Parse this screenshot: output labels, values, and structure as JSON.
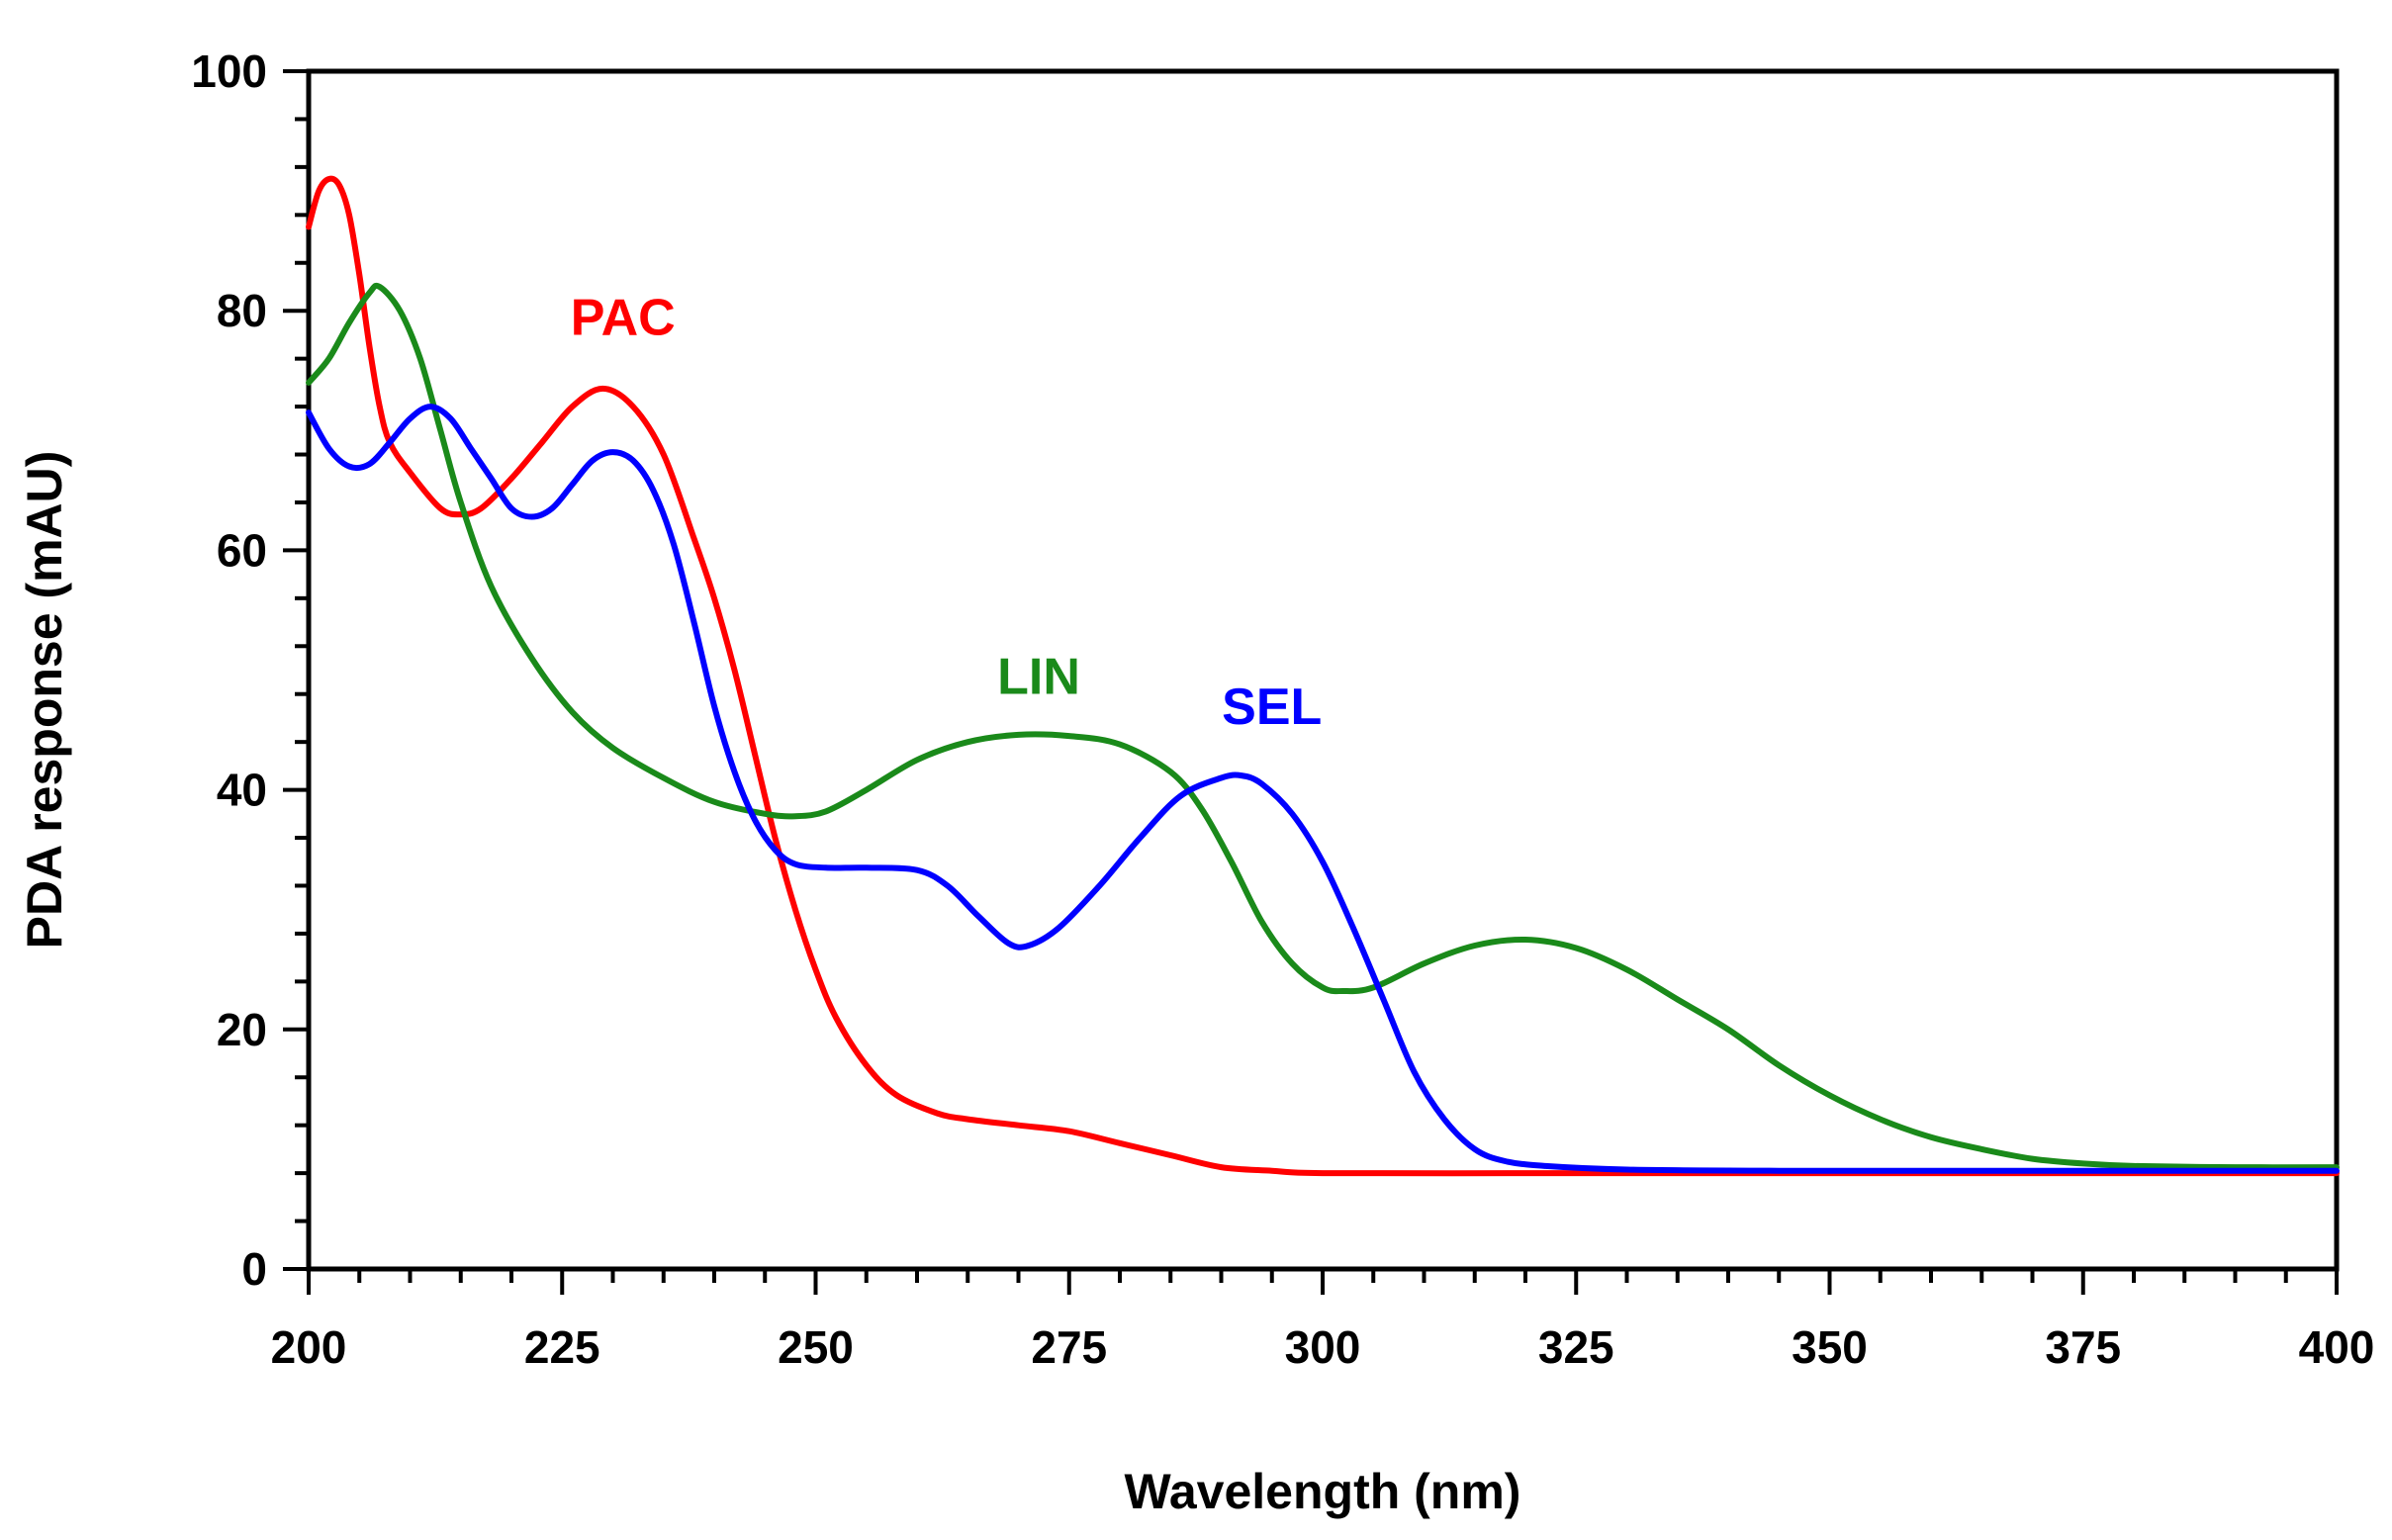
{
  "chart_data": {
    "type": "line",
    "title": "",
    "xlabel": "Wavelength (nm)",
    "ylabel": "PDA response (mAU)",
    "xlim": [
      200,
      400
    ],
    "ylim": [
      0,
      100
    ],
    "x_ticks": [
      200,
      225,
      250,
      275,
      300,
      325,
      350,
      375,
      400
    ],
    "x_tick_labels": [
      "200",
      "225",
      "250",
      "275",
      "300",
      "325",
      "350",
      "375",
      "400"
    ],
    "y_ticks": [
      0,
      20,
      40,
      60,
      80,
      100
    ],
    "y_tick_labels": [
      "0",
      "20",
      "40",
      "60",
      "80",
      "100"
    ],
    "grid": false,
    "legend": "none",
    "series": [
      {
        "name": "PAC",
        "color": "#ff0000",
        "label_at": [
          231,
          78
        ],
        "points": [
          [
            200,
            87
          ],
          [
            201,
            90
          ],
          [
            202,
            91
          ],
          [
            203,
            90.5
          ],
          [
            204,
            88
          ],
          [
            205,
            83
          ],
          [
            206,
            77
          ],
          [
            207,
            72
          ],
          [
            208,
            69
          ],
          [
            210,
            66.5
          ],
          [
            213,
            63.5
          ],
          [
            215,
            63
          ],
          [
            217,
            63.5
          ],
          [
            220,
            66
          ],
          [
            223,
            69
          ],
          [
            226,
            72
          ],
          [
            229,
            73.5
          ],
          [
            232,
            72
          ],
          [
            235,
            68
          ],
          [
            238,
            61
          ],
          [
            240,
            56
          ],
          [
            242,
            50
          ],
          [
            244,
            43
          ],
          [
            246,
            36
          ],
          [
            248,
            30
          ],
          [
            250,
            25
          ],
          [
            252,
            21
          ],
          [
            255,
            17
          ],
          [
            258,
            14.5
          ],
          [
            262,
            13
          ],
          [
            265,
            12.5
          ],
          [
            270,
            12
          ],
          [
            275,
            11.5
          ],
          [
            280,
            10.5
          ],
          [
            285,
            9.5
          ],
          [
            290,
            8.5
          ],
          [
            295,
            8.2
          ],
          [
            300,
            8
          ],
          [
            320,
            8
          ],
          [
            340,
            8
          ],
          [
            360,
            8
          ],
          [
            380,
            8
          ],
          [
            400,
            8
          ]
        ]
      },
      {
        "name": "LIN",
        "color": "#1a8a1a",
        "label_at": [
          272,
          48
        ],
        "points": [
          [
            200,
            74
          ],
          [
            202,
            76
          ],
          [
            204,
            79
          ],
          [
            206,
            81.5
          ],
          [
            207,
            82
          ],
          [
            209,
            80
          ],
          [
            211,
            76
          ],
          [
            213,
            70
          ],
          [
            215,
            64
          ],
          [
            218,
            57
          ],
          [
            222,
            51
          ],
          [
            226,
            46.5
          ],
          [
            230,
            43.5
          ],
          [
            235,
            41
          ],
          [
            240,
            39
          ],
          [
            245,
            38
          ],
          [
            248,
            37.8
          ],
          [
            251,
            38.2
          ],
          [
            255,
            40
          ],
          [
            260,
            42.5
          ],
          [
            265,
            44
          ],
          [
            270,
            44.6
          ],
          [
            275,
            44.5
          ],
          [
            280,
            43.8
          ],
          [
            285,
            41.5
          ],
          [
            288,
            38.5
          ],
          [
            291,
            34
          ],
          [
            294,
            29
          ],
          [
            297,
            25.5
          ],
          [
            300,
            23.5
          ],
          [
            302,
            23.2
          ],
          [
            305,
            23.5
          ],
          [
            310,
            25.5
          ],
          [
            315,
            27
          ],
          [
            320,
            27.5
          ],
          [
            325,
            26.8
          ],
          [
            330,
            25
          ],
          [
            335,
            22.5
          ],
          [
            340,
            20
          ],
          [
            345,
            17
          ],
          [
            350,
            14.5
          ],
          [
            355,
            12.5
          ],
          [
            360,
            11
          ],
          [
            365,
            10
          ],
          [
            370,
            9.2
          ],
          [
            375,
            8.8
          ],
          [
            380,
            8.6
          ],
          [
            390,
            8.5
          ],
          [
            400,
            8.5
          ]
        ]
      },
      {
        "name": "SEL",
        "color": "#0000ff",
        "label_at": [
          295,
          45.5
        ],
        "points": [
          [
            200,
            71.5
          ],
          [
            202,
            68.5
          ],
          [
            204,
            67
          ],
          [
            206,
            67.2
          ],
          [
            208,
            69
          ],
          [
            210,
            71
          ],
          [
            212,
            72
          ],
          [
            214,
            71
          ],
          [
            216,
            68.5
          ],
          [
            218,
            66
          ],
          [
            220,
            63.5
          ],
          [
            222,
            62.8
          ],
          [
            224,
            63.5
          ],
          [
            226,
            65.5
          ],
          [
            228,
            67.5
          ],
          [
            230,
            68.2
          ],
          [
            232,
            67.5
          ],
          [
            234,
            65
          ],
          [
            236,
            60.5
          ],
          [
            238,
            54
          ],
          [
            240,
            47
          ],
          [
            242,
            41.5
          ],
          [
            244,
            37.5
          ],
          [
            246,
            35
          ],
          [
            248,
            33.8
          ],
          [
            251,
            33.5
          ],
          [
            255,
            33.5
          ],
          [
            260,
            33.3
          ],
          [
            263,
            32
          ],
          [
            266,
            29.5
          ],
          [
            269,
            27.2
          ],
          [
            271,
            27
          ],
          [
            274,
            28.5
          ],
          [
            278,
            32
          ],
          [
            282,
            36
          ],
          [
            286,
            39.5
          ],
          [
            290,
            41
          ],
          [
            292,
            41.2
          ],
          [
            294,
            40.5
          ],
          [
            297,
            38
          ],
          [
            300,
            34
          ],
          [
            303,
            28.5
          ],
          [
            306,
            22.5
          ],
          [
            309,
            16.5
          ],
          [
            312,
            12.5
          ],
          [
            315,
            10
          ],
          [
            318,
            9
          ],
          [
            322,
            8.6
          ],
          [
            330,
            8.3
          ],
          [
            345,
            8.2
          ],
          [
            360,
            8.2
          ],
          [
            380,
            8.2
          ],
          [
            400,
            8.2
          ]
        ]
      }
    ]
  }
}
